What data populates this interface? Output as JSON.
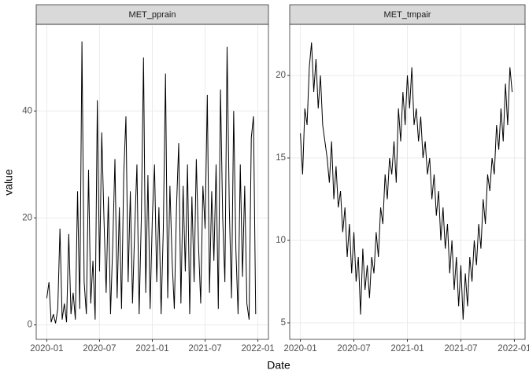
{
  "x_label": "Date",
  "y_label": "value",
  "chart_data": [
    {
      "type": "line",
      "title": "MET_pprain",
      "color": "#000000",
      "grid": true,
      "xlim": [
        -1.2,
        25.2
      ],
      "ylim": [
        -2.7,
        56.2
      ],
      "xticks": [
        {
          "value": 0,
          "label": "2020-01"
        },
        {
          "value": 6,
          "label": "2020-07"
        },
        {
          "value": 12,
          "label": "2021-01"
        },
        {
          "value": 18,
          "label": "2021-07"
        },
        {
          "value": 24,
          "label": "2022-01"
        }
      ],
      "yticks": [
        0,
        20,
        40
      ],
      "x": [
        0,
        0.25,
        0.5,
        0.75,
        1,
        1.25,
        1.5,
        1.75,
        2,
        2.25,
        2.5,
        2.75,
        3,
        3.25,
        3.5,
        3.75,
        4,
        4.25,
        4.5,
        4.75,
        5,
        5.25,
        5.5,
        5.75,
        6,
        6.25,
        6.5,
        6.75,
        7,
        7.25,
        7.5,
        7.75,
        8,
        8.25,
        8.5,
        8.75,
        9,
        9.25,
        9.5,
        9.75,
        10,
        10.25,
        10.5,
        10.75,
        11,
        11.25,
        11.5,
        11.75,
        12,
        12.25,
        12.5,
        12.75,
        13,
        13.25,
        13.5,
        13.75,
        14,
        14.25,
        14.5,
        14.75,
        15,
        15.25,
        15.5,
        15.75,
        16,
        16.25,
        16.5,
        16.75,
        17,
        17.25,
        17.5,
        17.75,
        18,
        18.25,
        18.5,
        18.75,
        19,
        19.25,
        19.5,
        19.75,
        20,
        20.25,
        20.5,
        20.75,
        21,
        21.25,
        21.5,
        21.75,
        22,
        22.25,
        22.5,
        22.75,
        23,
        23.25,
        23.5,
        23.75
      ],
      "values": [
        5,
        8,
        0.5,
        2,
        0.3,
        3,
        18,
        1,
        4,
        0.5,
        17,
        2,
        6,
        1,
        25,
        3,
        53,
        8,
        2,
        29,
        4,
        12,
        1,
        42,
        10,
        36,
        20,
        6,
        24,
        2,
        15,
        31,
        5,
        22,
        3,
        28,
        39,
        8,
        25,
        4,
        18,
        30,
        2,
        20,
        50,
        6,
        28,
        3,
        20,
        30,
        8,
        22,
        2,
        18,
        47,
        5,
        26,
        12,
        3,
        22,
        34,
        4,
        26,
        10,
        30,
        2,
        24,
        8,
        31,
        15,
        4,
        26,
        18,
        43,
        6,
        25,
        12,
        30,
        3,
        44,
        20,
        8,
        52,
        22,
        5,
        40,
        14,
        2,
        30,
        9,
        26,
        4,
        1,
        35,
        39,
        2
      ]
    },
    {
      "type": "line",
      "title": "MET_tmpair",
      "color": "#000000",
      "grid": true,
      "xlim": [
        -1.2,
        25.2
      ],
      "ylim": [
        4.0,
        23.1
      ],
      "xticks": [
        {
          "value": 0,
          "label": "2020-01"
        },
        {
          "value": 6,
          "label": "2020-07"
        },
        {
          "value": 12,
          "label": "2021-01"
        },
        {
          "value": 18,
          "label": "2021-07"
        },
        {
          "value": 24,
          "label": "2022-01"
        }
      ],
      "yticks": [
        5,
        10,
        15,
        20
      ],
      "x": [
        0,
        0.25,
        0.5,
        0.75,
        1,
        1.25,
        1.5,
        1.75,
        2,
        2.25,
        2.5,
        2.75,
        3,
        3.25,
        3.5,
        3.75,
        4,
        4.25,
        4.5,
        4.75,
        5,
        5.25,
        5.5,
        5.75,
        6,
        6.25,
        6.5,
        6.75,
        7,
        7.25,
        7.5,
        7.75,
        8,
        8.25,
        8.5,
        8.75,
        9,
        9.25,
        9.5,
        9.75,
        10,
        10.25,
        10.5,
        10.75,
        11,
        11.25,
        11.5,
        11.75,
        12,
        12.25,
        12.5,
        12.75,
        13,
        13.25,
        13.5,
        13.75,
        14,
        14.25,
        14.5,
        14.75,
        15,
        15.25,
        15.5,
        15.75,
        16,
        16.25,
        16.5,
        16.75,
        17,
        17.25,
        17.5,
        17.75,
        18,
        18.25,
        18.5,
        18.75,
        19,
        19.25,
        19.5,
        19.75,
        20,
        20.25,
        20.5,
        20.75,
        21,
        21.25,
        21.5,
        21.75,
        22,
        22.25,
        22.5,
        22.75,
        23,
        23.25,
        23.5,
        23.75
      ],
      "values": [
        16.5,
        14,
        18,
        17,
        20.5,
        22,
        19,
        21,
        18,
        20,
        17,
        16,
        15,
        13.5,
        16,
        12.5,
        14.5,
        12,
        13,
        10.5,
        12,
        9,
        11,
        8,
        10.5,
        7.5,
        9,
        5.5,
        9.5,
        7,
        8.5,
        6.5,
        9,
        8,
        10.5,
        9,
        12,
        11,
        14,
        12.5,
        15,
        14,
        16,
        13.5,
        18,
        16,
        19,
        17,
        20,
        18,
        20.5,
        17,
        18,
        16,
        17.5,
        15,
        16,
        14,
        15,
        12.5,
        14,
        11.5,
        13,
        10,
        12,
        9.5,
        11,
        8,
        10,
        7,
        9,
        6,
        8.5,
        5.2,
        8,
        6,
        9,
        7.5,
        10,
        8.5,
        11,
        9.5,
        12.5,
        11,
        14,
        13,
        15,
        14,
        17,
        15.5,
        18,
        16,
        19.5,
        17,
        20.5,
        19
      ]
    }
  ]
}
